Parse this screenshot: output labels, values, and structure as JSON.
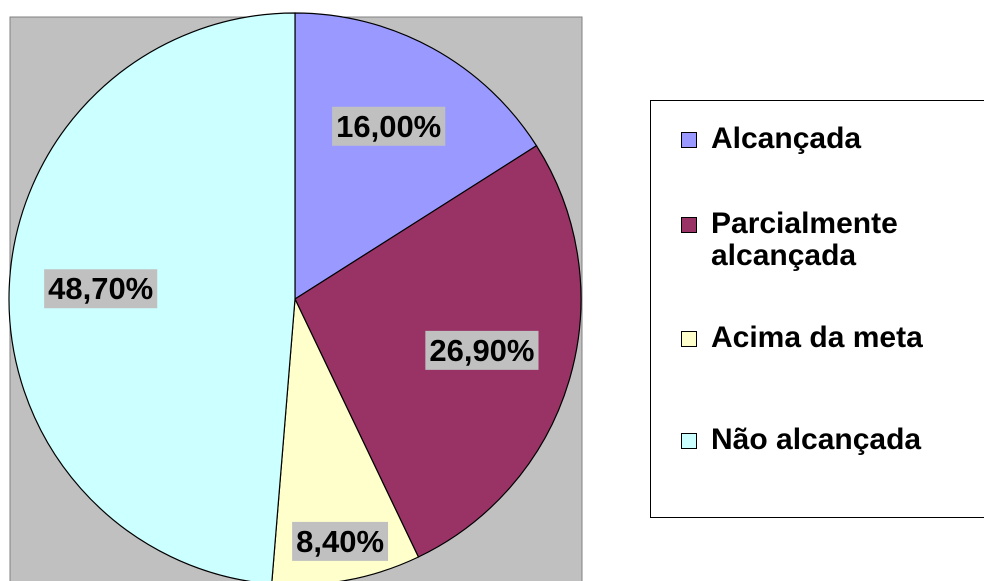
{
  "chart_data": {
    "type": "pie",
    "categories": [
      "Alcançada",
      "Parcialmente alcançada",
      "Acima da meta",
      "Não alcançada"
    ],
    "values": [
      16.0,
      26.9,
      8.4,
      48.7
    ],
    "value_labels": [
      "16,00%",
      "26,90%",
      "8,40%",
      "48,70%"
    ],
    "colors": [
      "#9999ff",
      "#993366",
      "#ffffcc",
      "#ccffff"
    ],
    "legend": "right"
  }
}
